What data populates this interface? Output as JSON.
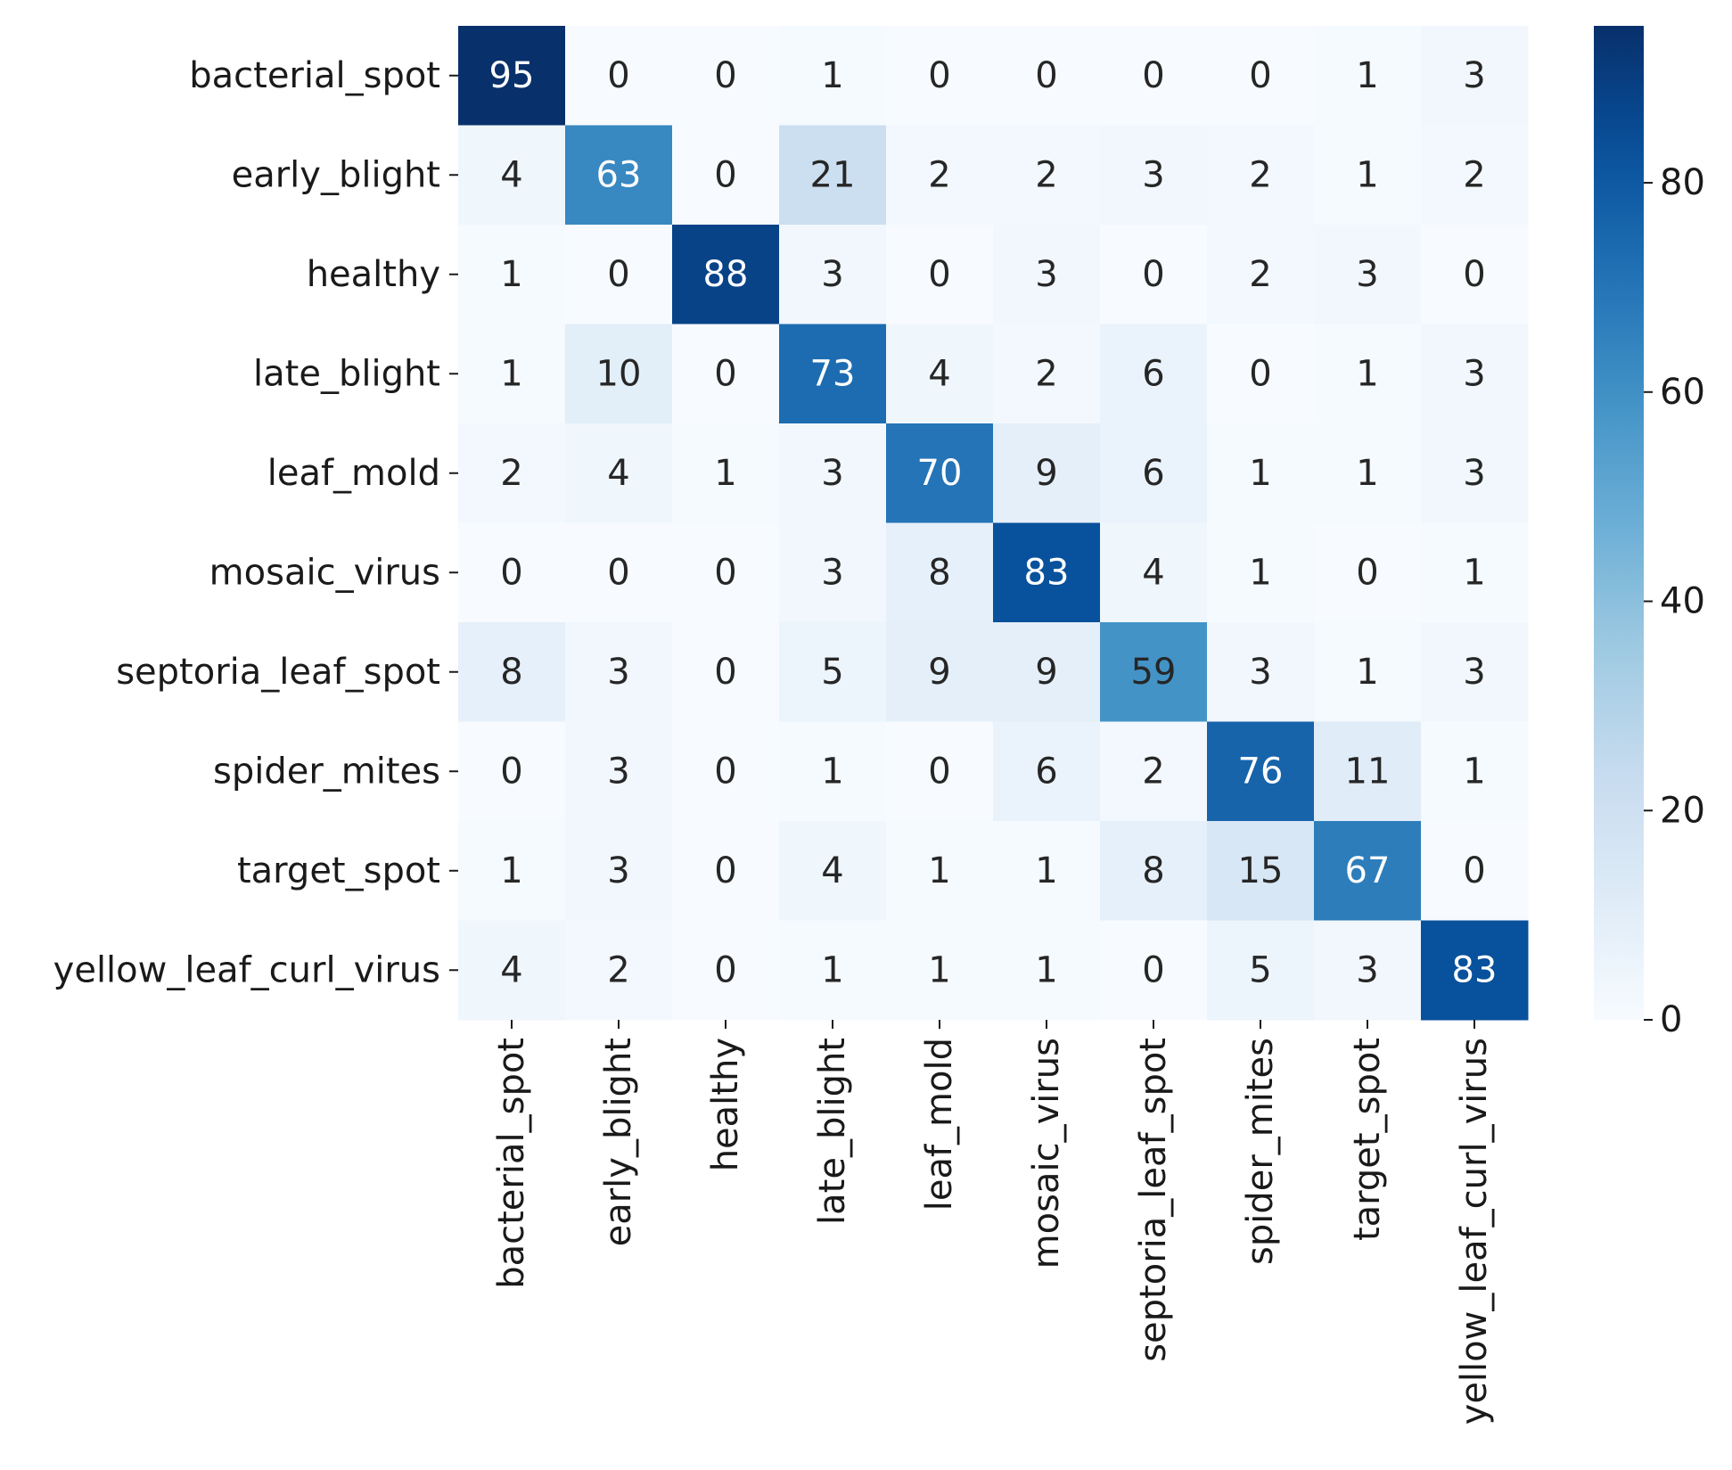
{
  "chart_data": {
    "type": "heatmap",
    "title": "",
    "xlabel": "",
    "ylabel": "",
    "rows": [
      "bacterial_spot",
      "early_blight",
      "healthy",
      "late_blight",
      "leaf_mold",
      "mosaic_virus",
      "septoria_leaf_spot",
      "spider_mites",
      "target_spot",
      "yellow_leaf_curl_virus"
    ],
    "columns": [
      "bacterial_spot",
      "early_blight",
      "healthy",
      "late_blight",
      "leaf_mold",
      "mosaic_virus",
      "septoria_leaf_spot",
      "spider_mites",
      "target_spot",
      "yellow_leaf_curl_virus"
    ],
    "values": [
      [
        95,
        0,
        0,
        1,
        0,
        0,
        0,
        0,
        1,
        3
      ],
      [
        4,
        63,
        0,
        21,
        2,
        2,
        3,
        2,
        1,
        2
      ],
      [
        1,
        0,
        88,
        3,
        0,
        3,
        0,
        2,
        3,
        0
      ],
      [
        1,
        10,
        0,
        73,
        4,
        2,
        6,
        0,
        1,
        3
      ],
      [
        2,
        4,
        1,
        3,
        70,
        9,
        6,
        1,
        1,
        3
      ],
      [
        0,
        0,
        0,
        3,
        8,
        83,
        4,
        1,
        0,
        1
      ],
      [
        8,
        3,
        0,
        5,
        9,
        9,
        59,
        3,
        1,
        3
      ],
      [
        0,
        3,
        0,
        1,
        0,
        6,
        2,
        76,
        11,
        1
      ],
      [
        1,
        3,
        0,
        4,
        1,
        1,
        8,
        15,
        67,
        0
      ],
      [
        4,
        2,
        0,
        1,
        1,
        1,
        0,
        5,
        3,
        83
      ]
    ],
    "colorbar": {
      "colormap": "Blues",
      "range": [
        0,
        95
      ],
      "ticks": [
        0,
        20,
        40,
        60,
        80
      ]
    },
    "annotations": true,
    "grid": false
  }
}
